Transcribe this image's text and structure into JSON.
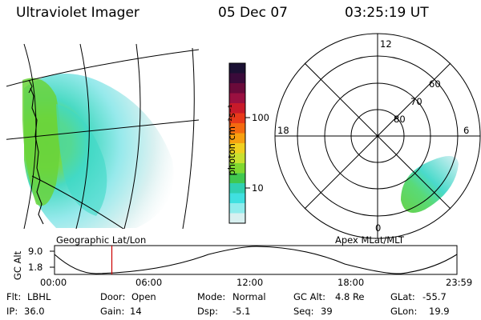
{
  "header": {
    "instrument": "Ultraviolet Imager",
    "date": "05 Dec 07",
    "time": "03:25:19 UT"
  },
  "colorbar": {
    "unit_label": "photon cm⁻²s⁻¹",
    "tick_labels": [
      "100",
      "10"
    ],
    "colors": [
      "#1a1033",
      "#3a0a3a",
      "#6a0a3a",
      "#9a1040",
      "#c81a2a",
      "#e83a1a",
      "#f46a10",
      "#f7a010",
      "#f0d020",
      "#c8e030",
      "#80d830",
      "#40c850",
      "#30d0b0",
      "#40e0e0",
      "#90ecec",
      "#d8f0f0"
    ]
  },
  "geo_map": {
    "label": "Geographic Lat/Lon"
  },
  "polar_plot": {
    "label": "Apex MLat/MLT",
    "mlt_labels": {
      "top": "12",
      "left": "18",
      "right": "6",
      "bottom": "0"
    },
    "lat_labels": [
      "60",
      "70",
      "80"
    ]
  },
  "altitude_track": {
    "axis_label": "GC Alt",
    "y_ticks": [
      "9.0",
      "1.8"
    ],
    "x_ticks": [
      "00:00",
      "06:00",
      "12:00",
      "18:00",
      "23:59"
    ],
    "marker_time_hours": 3.42
  },
  "info": {
    "filter_label": "Flt:",
    "filter_value": "LBHL",
    "ip_label": "IP:",
    "ip_value": "36.0",
    "door_label": "Door:",
    "door_value": "Open",
    "gain_label": "Gain:",
    "gain_value": "14",
    "mode_label": "Mode:",
    "mode_value": "Normal",
    "dsp_label": "Dsp:",
    "dsp_value": "-5.1",
    "gcalt_label": "GC Alt:",
    "gcalt_value": "4.8 Re",
    "seq_label": "Seq:",
    "seq_value": "39",
    "glat_label": "GLat:",
    "glat_value": "-55.7",
    "glon_label": "GLon:",
    "glon_value": "19.9"
  }
}
